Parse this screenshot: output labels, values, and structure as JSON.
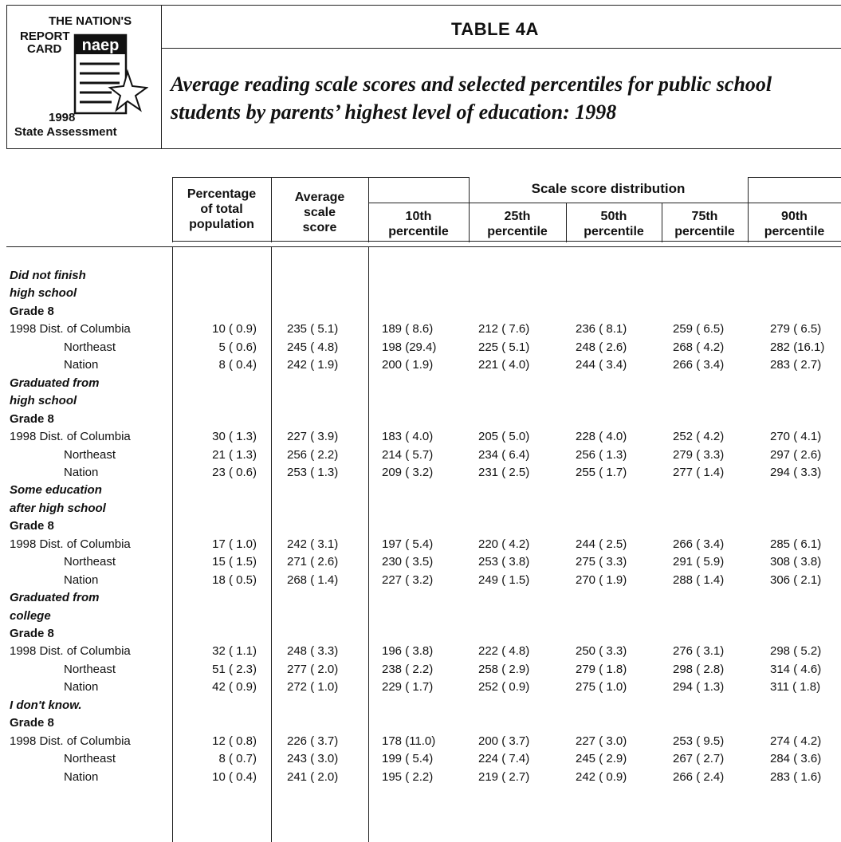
{
  "logo": {
    "line1": "THE NATION'S",
    "line2": "REPORT",
    "line3": "CARD",
    "brand": "naep",
    "year": "1998",
    "footer": "State Assessment"
  },
  "header": {
    "table_number": "TABLE 4A",
    "title": "Average reading scale scores and selected percentiles for public school students by parents’ highest level of education: 1998"
  },
  "columns": {
    "percentage": [
      "Percentage",
      "of total",
      "population"
    ],
    "average": [
      "Average",
      "scale",
      "score"
    ],
    "group": "Scale score distribution",
    "p10": [
      "10th",
      "percentile"
    ],
    "p25": [
      "25th",
      "percentile"
    ],
    "p50": [
      "50th",
      "percentile"
    ],
    "p75": [
      "75th",
      "percentile"
    ],
    "p90": [
      "90th",
      "percentile"
    ]
  },
  "rows": [
    {
      "type": "section",
      "label": "Did not finish"
    },
    {
      "type": "section",
      "label": "high school"
    },
    {
      "type": "grade",
      "label": "Grade 8"
    },
    {
      "type": "data",
      "label": "1998 Dist. of Columbia",
      "indent": false,
      "values": [
        "10 ( 0.9)",
        "235 ( 5.1)",
        "189 ( 8.6)",
        "212 ( 7.6)",
        "236 ( 8.1)",
        "259 ( 6.5)",
        "279 ( 6.5)"
      ]
    },
    {
      "type": "data",
      "label": "Northeast",
      "indent": true,
      "values": [
        "5 ( 0.6)",
        "245 ( 4.8)",
        "198 (29.4)",
        "225 ( 5.1)",
        "248 ( 2.6)",
        "268 ( 4.2)",
        "282 (16.1)"
      ]
    },
    {
      "type": "data",
      "label": "Nation",
      "indent": true,
      "values": [
        "8 ( 0.4)",
        "242 ( 1.9)",
        "200 ( 1.9)",
        "221 ( 4.0)",
        "244 ( 3.4)",
        "266 ( 3.4)",
        "283 ( 2.7)"
      ]
    },
    {
      "type": "section",
      "label": "Graduated from"
    },
    {
      "type": "section",
      "label": "high school"
    },
    {
      "type": "grade",
      "label": "Grade 8"
    },
    {
      "type": "data",
      "label": "1998 Dist. of Columbia",
      "indent": false,
      "values": [
        "30 ( 1.3)",
        "227 ( 3.9)",
        "183 ( 4.0)",
        "205 ( 5.0)",
        "228 ( 4.0)",
        "252 ( 4.2)",
        "270 ( 4.1)"
      ]
    },
    {
      "type": "data",
      "label": "Northeast",
      "indent": true,
      "values": [
        "21 ( 1.3)",
        "256 ( 2.2)",
        "214 ( 5.7)",
        "234 ( 6.4)",
        "256 ( 1.3)",
        "279 ( 3.3)",
        "297 ( 2.6)"
      ]
    },
    {
      "type": "data",
      "label": "Nation",
      "indent": true,
      "values": [
        "23 ( 0.6)",
        "253 ( 1.3)",
        "209 ( 3.2)",
        "231 ( 2.5)",
        "255 ( 1.7)",
        "277 ( 1.4)",
        "294 ( 3.3)"
      ]
    },
    {
      "type": "section",
      "label": "Some education"
    },
    {
      "type": "section",
      "label": "after high school"
    },
    {
      "type": "grade",
      "label": "Grade 8"
    },
    {
      "type": "data",
      "label": "1998 Dist. of Columbia",
      "indent": false,
      "values": [
        "17 ( 1.0)",
        "242 ( 3.1)",
        "197 ( 5.4)",
        "220 ( 4.2)",
        "244 ( 2.5)",
        "266 ( 3.4)",
        "285 ( 6.1)"
      ]
    },
    {
      "type": "data",
      "label": "Northeast",
      "indent": true,
      "values": [
        "15 ( 1.5)",
        "271 ( 2.6)",
        "230 ( 3.5)",
        "253 ( 3.8)",
        "275 ( 3.3)",
        "291 ( 5.9)",
        "308 ( 3.8)"
      ]
    },
    {
      "type": "data",
      "label": "Nation",
      "indent": true,
      "values": [
        "18 ( 0.5)",
        "268 ( 1.4)",
        "227 ( 3.2)",
        "249 ( 1.5)",
        "270 ( 1.9)",
        "288 ( 1.4)",
        "306 ( 2.1)"
      ]
    },
    {
      "type": "section",
      "label": "Graduated from"
    },
    {
      "type": "section",
      "label": "college"
    },
    {
      "type": "grade",
      "label": "Grade 8"
    },
    {
      "type": "data",
      "label": "1998 Dist. of Columbia",
      "indent": false,
      "values": [
        "32 ( 1.1)",
        "248 ( 3.3)",
        "196 ( 3.8)",
        "222 ( 4.8)",
        "250 ( 3.3)",
        "276 ( 3.1)",
        "298 ( 5.2)"
      ]
    },
    {
      "type": "data",
      "label": "Northeast",
      "indent": true,
      "values": [
        "51 ( 2.3)",
        "277 ( 2.0)",
        "238 ( 2.2)",
        "258 ( 2.9)",
        "279 ( 1.8)",
        "298 ( 2.8)",
        "314 ( 4.6)"
      ]
    },
    {
      "type": "data",
      "label": "Nation",
      "indent": true,
      "values": [
        "42 ( 0.9)",
        "272 ( 1.0)",
        "229 ( 1.7)",
        "252 ( 0.9)",
        "275 ( 1.0)",
        "294 ( 1.3)",
        "311 ( 1.8)"
      ]
    },
    {
      "type": "section",
      "label": "I don't know."
    },
    {
      "type": "grade",
      "label": "Grade 8"
    },
    {
      "type": "data",
      "label": "1998 Dist. of Columbia",
      "indent": false,
      "values": [
        "12 ( 0.8)",
        "226 ( 3.7)",
        "178 (11.0)",
        "200 ( 3.7)",
        "227 ( 3.0)",
        "253 ( 9.5)",
        "274 ( 4.2)"
      ]
    },
    {
      "type": "data",
      "label": "Northeast",
      "indent": true,
      "values": [
        "8 ( 0.7)",
        "243 ( 3.0)",
        "199 ( 5.4)",
        "224 ( 7.4)",
        "245 ( 2.9)",
        "267 ( 2.7)",
        "284 ( 3.6)"
      ]
    },
    {
      "type": "data",
      "label": "Nation",
      "indent": true,
      "values": [
        "10 ( 0.4)",
        "241 ( 2.0)",
        "195 ( 2.2)",
        "219 ( 2.7)",
        "242 ( 0.9)",
        "266 ( 2.4)",
        "283 ( 1.6)"
      ]
    }
  ]
}
